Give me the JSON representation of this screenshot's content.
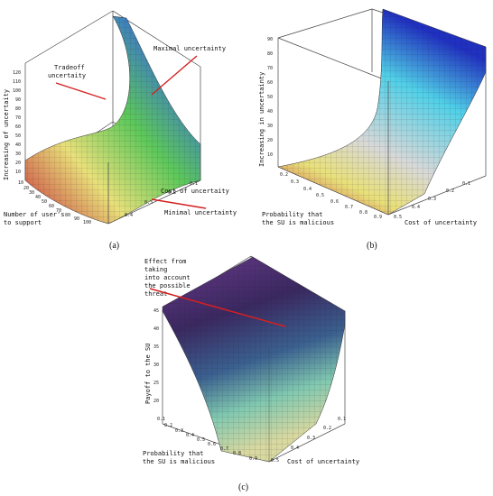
{
  "panels": [
    {
      "id": "a",
      "caption": "(a)",
      "annotations": [
        "Tradeoff uncertaity",
        "Maximal uncertainty",
        "Minimal uncertainty"
      ],
      "axis_labels": {
        "vertical": "Increasing of uncertaity",
        "cost": "Cost of uncertaity",
        "users": "Number of user's to support"
      }
    },
    {
      "id": "b",
      "caption": "(b)",
      "annotations": [],
      "axis_labels": {
        "vertical": "Increasing in uncertainty",
        "cost": "Cost of uncertainty",
        "prob": "Probability that the SU is malicious"
      }
    },
    {
      "id": "c",
      "caption": "(c)",
      "annotations": [
        "Effect from taking into account the possible threat"
      ],
      "axis_labels": {
        "vertical": "Payoff to the SU",
        "cost": "Cost of uncertainty",
        "prob": "Probability that the SU is malicious"
      }
    }
  ],
  "chart_data": [
    {
      "type": "surface",
      "panel": "(a)",
      "x_label": "Cost of uncertaity",
      "y_label": "Number of user's to support",
      "z_label": "Increasing of uncertaity",
      "x_ticks": [
        0.1,
        0.2,
        0.3,
        0.4
      ],
      "y_ticks": [
        10,
        20,
        30,
        40,
        50,
        60,
        70,
        80,
        90,
        100
      ],
      "z_ticks": [
        10,
        20,
        30,
        40,
        50,
        60,
        70,
        80,
        90,
        100,
        110,
        120
      ],
      "z_range": [
        0,
        120
      ],
      "colormap": [
        "#c8323c",
        "#e8e07a",
        "#5cc85a",
        "#3c78c8",
        "#1e2a8c"
      ],
      "annotations": [
        "Tradeoff uncertaity",
        "Maximal uncertainty",
        "Minimal uncertainty"
      ],
      "annotation_color": "#d42020"
    },
    {
      "type": "surface",
      "panel": "(b)",
      "x_label": "Cost of uncertainty",
      "y_label": "Probability that the SU is malicious",
      "z_label": "Increasing in uncertainty",
      "x_ticks": [
        0.1,
        0.2,
        0.3,
        0.4,
        0.5
      ],
      "y_ticks": [
        0.2,
        0.3,
        0.4,
        0.5,
        0.6,
        0.7,
        0.8,
        0.9
      ],
      "z_ticks": [
        10,
        20,
        30,
        40,
        50,
        60,
        70,
        80,
        90
      ],
      "z_range": [
        0,
        90
      ],
      "colormap": [
        "#c8323c",
        "#e8e07a",
        "#d8d8d8",
        "#50d0e8",
        "#2030c0"
      ]
    },
    {
      "type": "surface",
      "panel": "(c)",
      "x_label": "Cost of uncertainty",
      "y_label": "Probability that the SU is malicious",
      "z_label": "Payoff to the SU",
      "x_ticks": [
        0.1,
        0.2,
        0.3,
        0.4,
        0.5
      ],
      "y_ticks": [
        0.1,
        0.2,
        0.3,
        0.4,
        0.5,
        0.6,
        0.7,
        0.8,
        0.9
      ],
      "z_ticks": [
        20,
        25,
        30,
        35,
        40,
        45
      ],
      "z_range": [
        18,
        48
      ],
      "colormap": [
        "#d8d8a0",
        "#80c8b0",
        "#3a6090",
        "#3a2860",
        "#6a3a8c"
      ],
      "annotations": [
        "Effect from taking into account the possible threat"
      ],
      "annotation_color": "#d42020"
    }
  ]
}
